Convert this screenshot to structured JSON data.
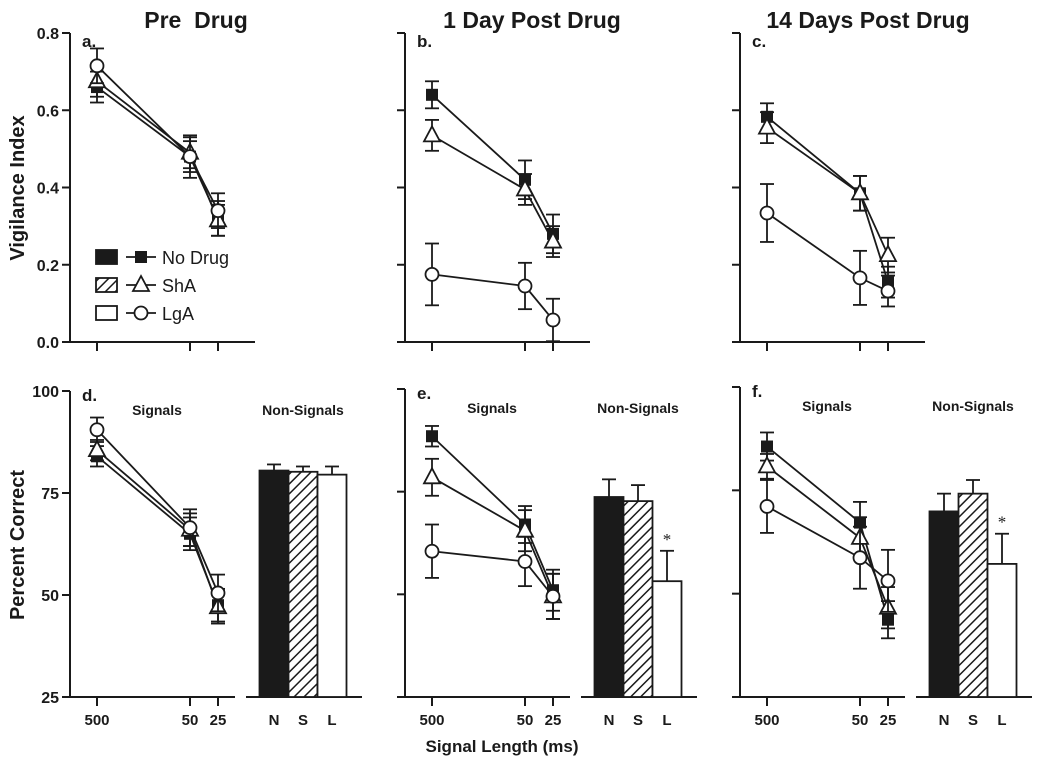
{
  "chart_data": {
    "type": "line+bar",
    "xlabel": "Signal Length (ms)",
    "legend": {
      "placement": "panel-a-lower-left",
      "entries": [
        {
          "name": "No Drug",
          "marker": "filled-square",
          "bar": "solid-black"
        },
        {
          "name": "ShA",
          "marker": "open-triangle",
          "bar": "hatched"
        },
        {
          "name": "LgA",
          "marker": "open-circle",
          "bar": "white"
        }
      ]
    },
    "colors": {
      "ink": "#1a1a1a",
      "background": "#ffffff"
    },
    "column_titles": [
      "Pre  Drug",
      "1 Day Post Drug",
      "14 Days Post Drug"
    ],
    "panels": [
      {
        "letter": "a.",
        "ylabel": "Vigilance Index",
        "ylim": [
          0,
          0.8
        ],
        "yticks": [
          "0.0",
          "0.2",
          "0.4",
          "0.6",
          "0.8"
        ],
        "ytick_values": [
          0,
          0.2,
          0.4,
          0.6,
          0.8
        ],
        "categories": [
          "500",
          "50",
          "25"
        ],
        "show_xtick_labels": false,
        "series": [
          {
            "name": "No Drug",
            "values": [
              0.66,
              0.48,
              0.32
            ],
            "err": [
              0.04,
              0.04,
              0.045
            ]
          },
          {
            "name": "ShA",
            "values": [
              0.675,
              0.49,
              0.315
            ],
            "err": [
              0.04,
              0.04,
              0.04
            ]
          },
          {
            "name": "LgA",
            "values": [
              0.715,
              0.48,
              0.34
            ],
            "err": [
              0.045,
              0.055,
              0.045
            ]
          }
        ]
      },
      {
        "letter": "b.",
        "ylim": [
          0,
          0.8
        ],
        "ytick_values": [
          0,
          0.2,
          0.4,
          0.6,
          0.8
        ],
        "categories": [
          "500",
          "50",
          "25"
        ],
        "show_xtick_labels": false,
        "series": [
          {
            "name": "No Drug",
            "values": [
              0.64,
              0.42,
              0.28
            ],
            "err": [
              0.035,
              0.05,
              0.05
            ]
          },
          {
            "name": "ShA",
            "values": [
              0.535,
              0.395,
              0.26
            ],
            "err": [
              0.04,
              0.04,
              0.04
            ]
          },
          {
            "name": "LgA",
            "values": [
              0.175,
              0.145,
              0.057
            ],
            "err": [
              0.08,
              0.06,
              0.055
            ]
          }
        ]
      },
      {
        "letter": "c.",
        "ylim": [
          0,
          0.8
        ],
        "ytick_values": [
          0,
          0.2,
          0.4,
          0.6,
          0.8
        ],
        "categories": [
          "500",
          "50",
          "25"
        ],
        "show_xtick_labels": false,
        "series": [
          {
            "name": "No Drug",
            "values": [
              0.583,
              0.385,
              0.155
            ],
            "err": [
              0.035,
              0.045,
              0.04
            ]
          },
          {
            "name": "ShA",
            "values": [
              0.555,
              0.385,
              0.225
            ],
            "err": [
              0.04,
              0.045,
              0.045
            ]
          },
          {
            "name": "LgA",
            "values": [
              0.334,
              0.166,
              0.132
            ],
            "err": [
              0.075,
              0.07,
              0.04
            ]
          }
        ]
      },
      {
        "letter": "d.",
        "ylabel": "Percent Correct",
        "ylim": [
          25,
          100
        ],
        "yticks": [
          "25",
          "50",
          "75",
          "100"
        ],
        "ytick_values": [
          25,
          50,
          75,
          100
        ],
        "categories": [
          "500",
          "50",
          "25"
        ],
        "show_xtick_labels": true,
        "group_labels": [
          "Signals",
          "Non-Signals"
        ],
        "series": [
          {
            "name": "No Drug",
            "values": [
              84,
              65,
              47.5
            ],
            "err": [
              2.5,
              4,
              4
            ]
          },
          {
            "name": "ShA",
            "values": [
              85.5,
              66,
              47
            ],
            "err": [
              2.5,
              4,
              4
            ]
          },
          {
            "name": "LgA",
            "values": [
              90.5,
              66.5,
              50.5
            ],
            "err": [
              3,
              4.5,
              4.5
            ]
          }
        ],
        "bars": {
          "categories": [
            "N",
            "S",
            "L"
          ],
          "values": [
            80.5,
            80.2,
            79.5
          ],
          "err": [
            1.5,
            1.3,
            2
          ],
          "significance": [
            "",
            "",
            ""
          ]
        }
      },
      {
        "letter": "e.",
        "ylim": [
          25,
          100
        ],
        "ytick_values": [
          25,
          50,
          75,
          100
        ],
        "categories": [
          "500",
          "50",
          "25"
        ],
        "show_xtick_labels": true,
        "group_labels": [
          "Signals",
          "Non-Signals"
        ],
        "series": [
          {
            "name": "No Drug",
            "values": [
              88.5,
              67,
              51
            ],
            "err": [
              2.5,
              4.5,
              5
            ]
          },
          {
            "name": "ShA",
            "values": [
              78.5,
              65.5,
              49.5
            ],
            "err": [
              4.5,
              5,
              5.5
            ]
          },
          {
            "name": "LgA",
            "values": [
              60.5,
              58,
              49.5
            ],
            "err": [
              6.5,
              6,
              5.5
            ]
          }
        ],
        "bars": {
          "categories": [
            "N",
            "S",
            "L"
          ],
          "values": [
            73.7,
            72.7,
            53.2
          ],
          "err": [
            4.3,
            3.9,
            7.4
          ],
          "significance": [
            "",
            "",
            "*"
          ]
        }
      },
      {
        "letter": "f.",
        "ylim": [
          25,
          100
        ],
        "ytick_values": [
          25,
          50,
          75,
          100
        ],
        "categories": [
          "500",
          "50",
          "25"
        ],
        "show_xtick_labels": true,
        "group_labels": [
          "Signals",
          "Non-Signals"
        ],
        "series": [
          {
            "name": "No Drug",
            "values": [
              85.6,
              67.2,
              43.7
            ],
            "err": [
              3.4,
              5,
              4.5
            ]
          },
          {
            "name": "ShA",
            "values": [
              80.8,
              63.5,
              46.6
            ],
            "err": [
              3,
              5,
              5
            ]
          },
          {
            "name": "LgA",
            "values": [
              71.1,
              58.7,
              53.1
            ],
            "err": [
              6.4,
              7.5,
              7.5
            ]
          }
        ],
        "bars": {
          "categories": [
            "N",
            "S",
            "L"
          ],
          "values": [
            69.9,
            74.2,
            57.2
          ],
          "err": [
            4.3,
            3.3,
            7.3
          ],
          "significance": [
            "",
            "",
            "*"
          ]
        }
      }
    ]
  }
}
